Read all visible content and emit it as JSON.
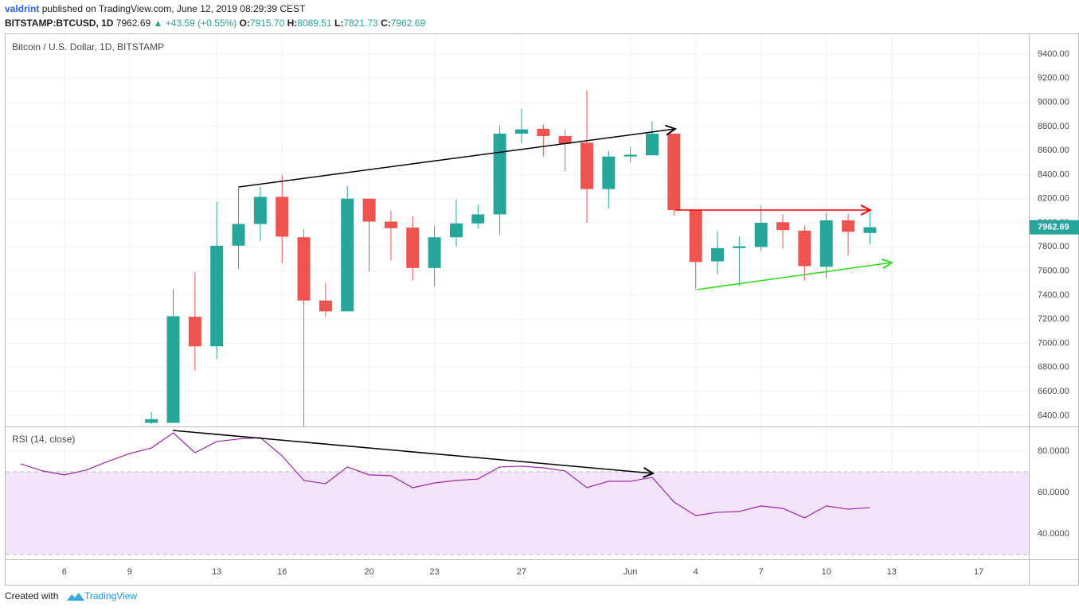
{
  "header": {
    "author": "valdrint",
    "published": "published on TradingView.com, June 12, 2019 08:29:39 CEST",
    "symbol": "BITSTAMP:BTCUSD, 1D",
    "last": "7962.69",
    "change": "+43.59 (+0.55%)",
    "ohlc": [
      {
        "key": "O:",
        "value": "7915.70"
      },
      {
        "key": "H:",
        "value": "8089.51"
      },
      {
        "key": "L:",
        "value": "7821.73"
      },
      {
        "key": "C:",
        "value": "7962.69"
      }
    ]
  },
  "chart_data": [
    {
      "type": "candlestick",
      "title": "Bitcoin / U.S. Dollar, 1D, BITSTAMP",
      "x": [
        10,
        11,
        12,
        13,
        14,
        15,
        16,
        17,
        18,
        19,
        20,
        21,
        22,
        23,
        24,
        25,
        26,
        27,
        28,
        29,
        30,
        31,
        32,
        33,
        34,
        35,
        36,
        37,
        38,
        39,
        40,
        41,
        42,
        43
      ],
      "open": [
        6340,
        6340,
        7220,
        6975,
        7810,
        7990,
        8215,
        7880,
        7355,
        7265,
        8200,
        8010,
        7960,
        7625,
        7880,
        7995,
        8070,
        8740,
        8780,
        8720,
        8665,
        8280,
        8550,
        8560,
        8740,
        8105,
        7680,
        7790,
        7800,
        8005,
        7935,
        7635,
        8020,
        7915.7
      ],
      "high": [
        6430,
        7450,
        7590,
        8175,
        8300,
        8300,
        8400,
        7950,
        7500,
        8305,
        8200,
        8100,
        8055,
        7975,
        8195,
        8150,
        8805,
        8945,
        8815,
        8775,
        9100,
        8595,
        8630,
        8840,
        8740,
        8105,
        7930,
        7885,
        8140,
        8070,
        7975,
        8085,
        8075,
        8089.51
      ],
      "low": [
        6330,
        6340,
        6775,
        6870,
        7620,
        7850,
        7665,
        6200,
        7220,
        7265,
        7595,
        7690,
        7520,
        7475,
        7805,
        7950,
        7900,
        8660,
        8550,
        8430,
        8000,
        8120,
        8500,
        8560,
        8060,
        7450,
        7575,
        7475,
        7765,
        7785,
        7520,
        7540,
        7725,
        7821.73
      ],
      "close": [
        6370,
        7225,
        6975,
        7810,
        7990,
        8215,
        7885,
        7355,
        7265,
        8200,
        8010,
        7955,
        7625,
        7880,
        7995,
        8070,
        8740,
        8775,
        8720,
        8655,
        8280,
        8550,
        8565,
        8740,
        8105,
        7675,
        7790,
        7805,
        8000,
        7940,
        7640,
        8020,
        7925,
        7962.69
      ],
      "up_color": "#26a69a",
      "down_color": "#ef5350",
      "ylim": [
        6310,
        9565
      ],
      "yticks": [
        {
          "value": 6400,
          "label": "6400.00"
        },
        {
          "value": 6600,
          "label": "6600.00"
        },
        {
          "value": 6800,
          "label": "6800.00"
        },
        {
          "value": 7000,
          "label": "7000.00"
        },
        {
          "value": 7200,
          "label": "7200.00"
        },
        {
          "value": 7400,
          "label": "7400.00"
        },
        {
          "value": 7600,
          "label": "7600.00"
        },
        {
          "value": 7800,
          "label": "7800.00"
        },
        {
          "value": 8000,
          "label": "8000.00"
        },
        {
          "value": 8200,
          "label": "8200.00"
        },
        {
          "value": 8400,
          "label": "8400.00"
        },
        {
          "value": 8600,
          "label": "8600.00"
        },
        {
          "value": 8800,
          "label": "8800.00"
        },
        {
          "value": 9000,
          "label": "9000.00"
        },
        {
          "value": 9200,
          "label": "9200.00"
        },
        {
          "value": 9400,
          "label": "9400.00"
        }
      ],
      "grid": true,
      "last_value_label": "7962.69"
    },
    {
      "type": "line",
      "title": "RSI (14, close)",
      "x": [
        4,
        5,
        6,
        7,
        8,
        9,
        10,
        11,
        12,
        13,
        14,
        15,
        16,
        17,
        18,
        19,
        20,
        21,
        22,
        23,
        24,
        25,
        26,
        27,
        28,
        29,
        30,
        31,
        32,
        33,
        34,
        35,
        36,
        37,
        38,
        39,
        40,
        41,
        42,
        43
      ],
      "values": [
        73.8,
        70.4,
        68.5,
        70.8,
        75,
        78.8,
        81.5,
        88.8,
        79.2,
        84.6,
        85.8,
        86.5,
        77.7,
        65.8,
        64.2,
        72.3,
        68.5,
        68.1,
        62.3,
        64.6,
        65.8,
        66.5,
        72.3,
        72.7,
        71.9,
        70.4,
        62.3,
        65.4,
        65.4,
        67.3,
        55.4,
        48.8,
        50.4,
        50.8,
        53.5,
        52.3,
        47.7,
        53.5,
        51.9,
        52.7
      ],
      "color": "#9c27b0",
      "band": [
        30,
        70
      ],
      "band_color": "#f3e3fb",
      "xlim": [
        3.3,
        50.3
      ],
      "xticks": [
        6,
        9,
        13,
        16,
        20,
        23,
        27,
        {
          "value": 32,
          "label": "Jun"
        },
        {
          "value": 35,
          "label": "4"
        },
        {
          "value": 38,
          "label": "7"
        },
        {
          "value": 41,
          "label": "10"
        },
        {
          "value": 44,
          "label": "13"
        },
        {
          "value": 48,
          "label": "17"
        }
      ],
      "ylim": [
        27.7,
        91.5
      ],
      "yticks": [
        {
          "value": 40,
          "label": "40.0000"
        },
        {
          "value": 60,
          "label": "60.0000"
        },
        {
          "value": 80,
          "label": "80.0000"
        }
      ],
      "grid": true
    }
  ],
  "footer": {
    "text": "Created with",
    "brand": "TradingView"
  }
}
